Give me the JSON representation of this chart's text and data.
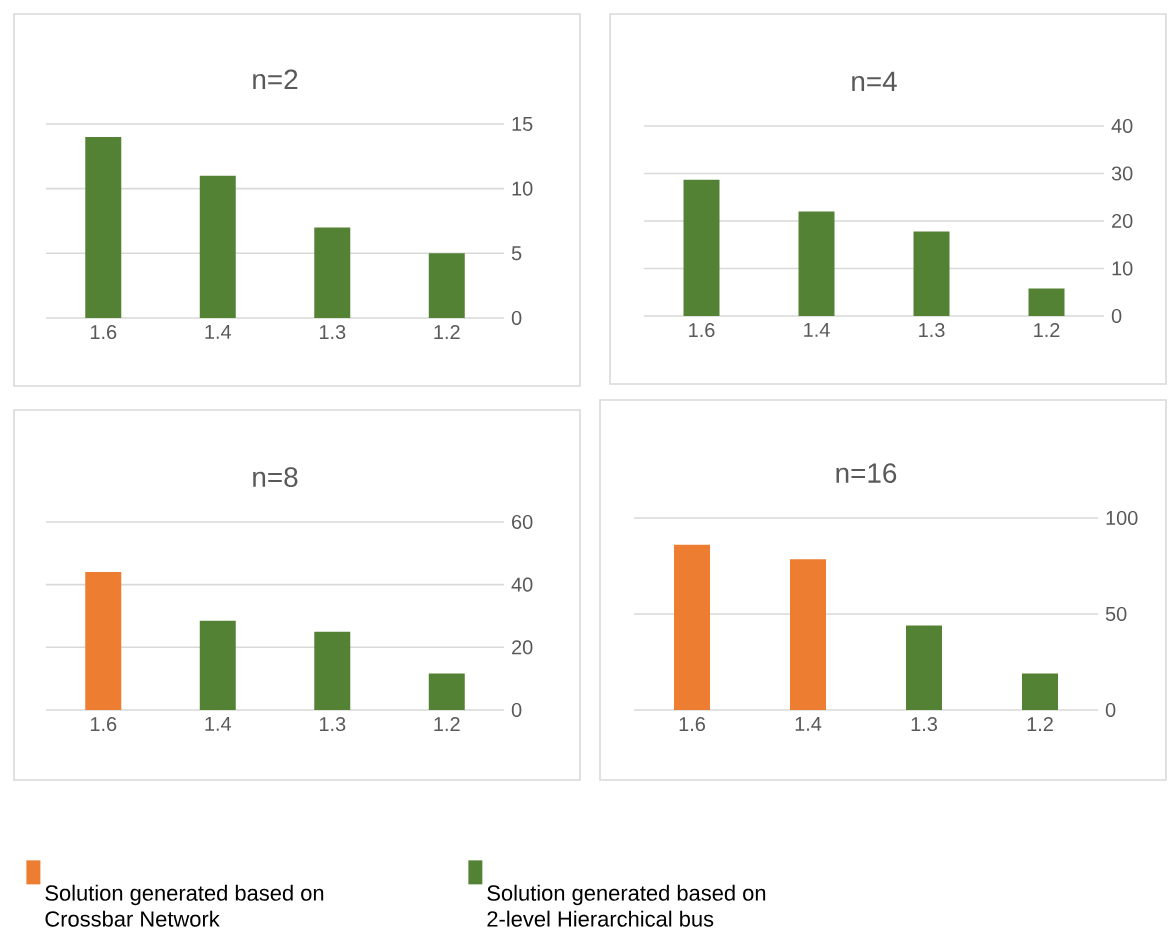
{
  "chart_data": [
    {
      "type": "bar",
      "title": "n=2",
      "categories": [
        "1.6",
        "1.4",
        "1.3",
        "1.2"
      ],
      "series": [
        {
          "color": "#548235",
          "values": [
            14,
            11,
            7,
            5
          ]
        }
      ],
      "ylim": [
        0,
        15
      ],
      "yticks": [
        0,
        5,
        10,
        15
      ],
      "grid": "y"
    },
    {
      "type": "bar",
      "title": "n=4",
      "categories": [
        "1.6",
        "1.4",
        "1.3",
        "1.2"
      ],
      "series": [
        {
          "color": "#548235",
          "values": [
            28.7,
            22,
            17.8,
            5.8
          ]
        }
      ],
      "ylim": [
        0,
        40
      ],
      "yticks": [
        0,
        10,
        20,
        30,
        40
      ],
      "grid": "y"
    },
    {
      "type": "bar",
      "title": "n=8",
      "categories": [
        "1.6",
        "1.4",
        "1.3",
        "1.2"
      ],
      "series": [
        {
          "color": "#ed7d31",
          "values": [
            44,
            null,
            null,
            null
          ]
        },
        {
          "color": "#548235",
          "values": [
            null,
            28.5,
            25,
            11.6
          ]
        }
      ],
      "ylim": [
        0,
        60
      ],
      "yticks": [
        0,
        20,
        40,
        60
      ],
      "grid": "y"
    },
    {
      "type": "bar",
      "title": "n=16",
      "categories": [
        "1.6",
        "1.4",
        "1.3",
        "1.2"
      ],
      "series": [
        {
          "name": "Solution generated based on Crossbar  Network",
          "color": "#ed7d31",
          "values": [
            86,
            78.5,
            null,
            null
          ]
        },
        {
          "name": "Solution generated based on 2-level Hierarchical bus",
          "color": "#548235",
          "values": [
            null,
            null,
            44,
            19
          ]
        }
      ],
      "ylim": [
        0,
        100
      ],
      "yticks": [
        0,
        50,
        100
      ],
      "grid": "y",
      "legend": "bottom"
    }
  ]
}
